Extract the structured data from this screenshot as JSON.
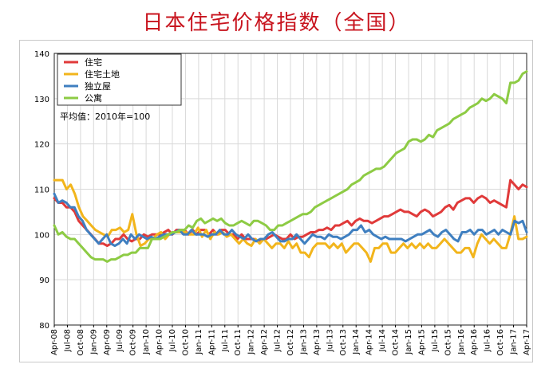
{
  "title": "日本住宅价格指数（全国）",
  "chart_data": {
    "type": "line",
    "title": "日本住宅价格指数（全国）",
    "note": "平均值：2010年=100",
    "ylim": [
      80,
      140
    ],
    "yticks": [
      80,
      90,
      100,
      110,
      120,
      130,
      140
    ],
    "grid": true,
    "legend_position": "top-left",
    "x_labels": [
      "Apr-08",
      "Jul-08",
      "Oct-08",
      "Jan-09",
      "Apr-09",
      "Jul-09",
      "Oct-09",
      "Jan-10",
      "Apr-10",
      "Jul-10",
      "Oct-10",
      "Jan-11",
      "Apr-11",
      "Jul-11",
      "Oct-11",
      "Jan-12",
      "Apr-12",
      "Jul-12",
      "Oct-12",
      "Jan-13",
      "Apr-13",
      "Jul-13",
      "Oct-13",
      "Jan-14",
      "Apr-14",
      "Jul-14",
      "Oct-14",
      "Jan-15",
      "Apr-15",
      "Jul-15",
      "Oct-15",
      "Jan-16",
      "Apr-16",
      "Jul-16",
      "Oct-16",
      "Jan-17",
      "Apr-17"
    ],
    "series": [
      {
        "name": "住宅",
        "color": "#e03a3a",
        "values": [
          108,
          107,
          107,
          106,
          106,
          105,
          103,
          102,
          101,
          100,
          99,
          98,
          98,
          97.5,
          98,
          99,
          99,
          100,
          99,
          98.5,
          99,
          99,
          100,
          99.5,
          100,
          100,
          100,
          100.5,
          101,
          100,
          101,
          101,
          101,
          100,
          101,
          100,
          101,
          101,
          100,
          101,
          100,
          101,
          101,
          100,
          100,
          99,
          100,
          99,
          99,
          99,
          98.5,
          99,
          99,
          99.5,
          100,
          99.5,
          99,
          99,
          100,
          99,
          99.5,
          99.5,
          100,
          100.5,
          100.5,
          101,
          101,
          101.5,
          101,
          102,
          102,
          102.5,
          103,
          102,
          103,
          103.5,
          103,
          103,
          102.5,
          103,
          103.5,
          104,
          104,
          104.5,
          105,
          105.5,
          105,
          105,
          104.5,
          104,
          105,
          105.5,
          105,
          104,
          104.5,
          105,
          106,
          106.5,
          105.5,
          107,
          107.5,
          108,
          108,
          107,
          108,
          108.5,
          108,
          107,
          107.5,
          107,
          106.5,
          106,
          112,
          111,
          110,
          111,
          110.5
        ]
      },
      {
        "name": "住宅土地",
        "color": "#f2b51c",
        "values": [
          112,
          112,
          112,
          110,
          111,
          109,
          106,
          104,
          103,
          102,
          101,
          100.5,
          100,
          99.5,
          101,
          101,
          101.5,
          100.5,
          101,
          104.5,
          100,
          97.5,
          98,
          99,
          99,
          100,
          100.5,
          99,
          100,
          100.5,
          100.5,
          100.5,
          100.5,
          100,
          100,
          101.5,
          99.5,
          101,
          99,
          100.5,
          100,
          100.5,
          99.5,
          100,
          99,
          98,
          99,
          98,
          97.5,
          99,
          98,
          99,
          98,
          97,
          98,
          98,
          97,
          98.5,
          97,
          98,
          96,
          96,
          95,
          97,
          98,
          98,
          98,
          97,
          98,
          97,
          98,
          96,
          97,
          98,
          98,
          97,
          96,
          94,
          97,
          97,
          98,
          98,
          96,
          96,
          97,
          98,
          97,
          98,
          97,
          98,
          97,
          98,
          97,
          97,
          98,
          99,
          98,
          97,
          96,
          96,
          97,
          97,
          95,
          98,
          100,
          99,
          98,
          99,
          98,
          97,
          97,
          100,
          104,
          99,
          99,
          99.5
        ]
      },
      {
        "name": "独立屋",
        "color": "#3f7fc0",
        "values": [
          109,
          107,
          107.5,
          107,
          106,
          106,
          104,
          103,
          101,
          100,
          99,
          98,
          99,
          100,
          98,
          97.5,
          98,
          99,
          98,
          100,
          99,
          100,
          99.5,
          99,
          99.5,
          99,
          99.5,
          100,
          100,
          100,
          100.5,
          101,
          100,
          100,
          101,
          100,
          100,
          100,
          99.5,
          100,
          100,
          101,
          100,
          100,
          101,
          100,
          99.5,
          99,
          100,
          99,
          98.5,
          99,
          99,
          100,
          100.5,
          99.5,
          98.5,
          98.5,
          99,
          99,
          100,
          99,
          98,
          99,
          100,
          99.5,
          99.5,
          99,
          100,
          99.5,
          99.5,
          99,
          99.5,
          100,
          101,
          101,
          102,
          100.5,
          101,
          100,
          99.5,
          99,
          99.5,
          99,
          99,
          99,
          99,
          98.5,
          99,
          99.5,
          100,
          100,
          100.5,
          101,
          100,
          99.5,
          100.5,
          101,
          100,
          99,
          98.5,
          100.5,
          100.5,
          101,
          100,
          101,
          101,
          100,
          100.5,
          101,
          100,
          101,
          100.5,
          100,
          103,
          102.5,
          103,
          100.5
        ]
      },
      {
        "name": "公寓",
        "color": "#8dcb44",
        "values": [
          102,
          100,
          100.5,
          99.5,
          99,
          99,
          98,
          97,
          96,
          95,
          94.5,
          94.5,
          94.5,
          94,
          94.5,
          94.5,
          95,
          95.5,
          95.5,
          96,
          96,
          97,
          97,
          97,
          99,
          99,
          99,
          99.5,
          100,
          100.5,
          100.5,
          101,
          101,
          102,
          101.5,
          103,
          103.5,
          102.5,
          103,
          103.5,
          103,
          103.5,
          102.5,
          102,
          102,
          102.5,
          103,
          102.5,
          102,
          103,
          103,
          102.5,
          102,
          101,
          101,
          102,
          102,
          102.5,
          103,
          103.5,
          104,
          104.5,
          104.5,
          105,
          106,
          106.5,
          107,
          107.5,
          108,
          108.5,
          109,
          109.5,
          110,
          111,
          111.5,
          112,
          113,
          113.5,
          114,
          114.5,
          114.5,
          115,
          116,
          117,
          118,
          118.5,
          119,
          120.5,
          121,
          121,
          120.5,
          121,
          122,
          121.5,
          123,
          123.5,
          124,
          124.5,
          125.5,
          126,
          126.5,
          127,
          128,
          128.5,
          129,
          130,
          129.5,
          130,
          131,
          130.5,
          130,
          129,
          133.5,
          133.5,
          134,
          135.5,
          136
        ]
      }
    ]
  }
}
